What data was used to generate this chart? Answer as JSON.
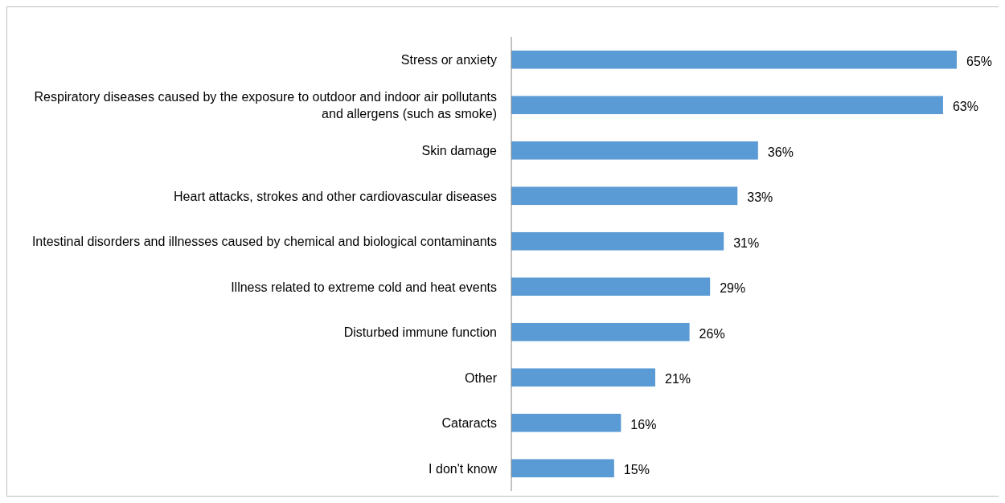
{
  "chart_data": {
    "type": "bar",
    "orientation": "horizontal",
    "categories": [
      "Stress or anxiety",
      "Respiratory diseases caused by the exposure to outdoor and indoor air pollutants and allergens (such as smoke)",
      "Skin damage",
      "Heart attacks, strokes and other cardiovascular diseases",
      "Intestinal disorders and illnesses caused by chemical and biological contaminants",
      "Illness related to extreme cold and heat events",
      "Disturbed immune function",
      "Other",
      "Cataracts",
      "I don't know"
    ],
    "values": [
      65,
      63,
      36,
      33,
      31,
      29,
      26,
      21,
      16,
      15
    ],
    "value_labels": [
      "65%",
      "63%",
      "36%",
      "33%",
      "31%",
      "29%",
      "26%",
      "21%",
      "16%",
      "15%"
    ],
    "color": "#5b9bd5",
    "xlim": [
      0,
      65
    ]
  }
}
